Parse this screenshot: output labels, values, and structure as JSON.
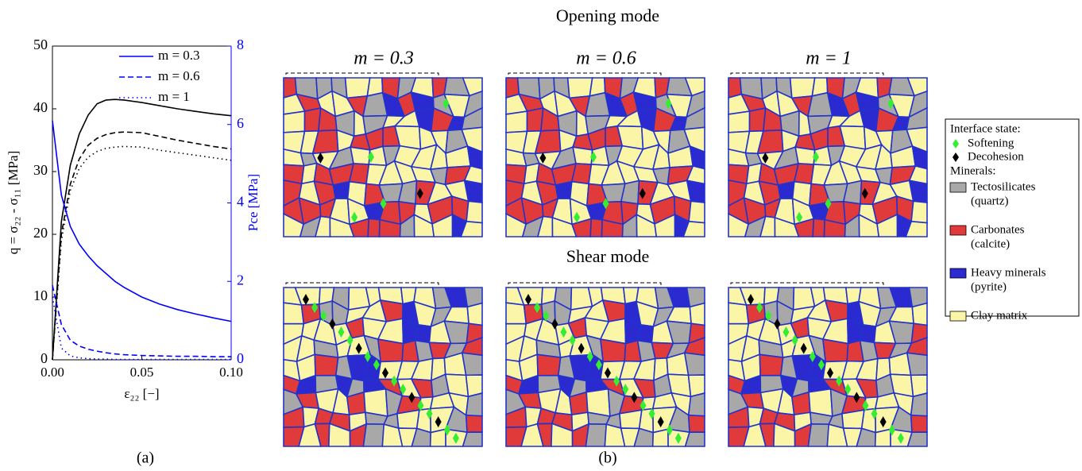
{
  "chart_data": {
    "type": "line",
    "xlabel": "ε₂₂ [−]",
    "ylabel": "q = σ₂₂ - σ₁₁ [MPa]",
    "y2label": "Pce [MPa]",
    "x": [
      0,
      0.005,
      0.01,
      0.015,
      0.02,
      0.025,
      0.03,
      0.035,
      0.04,
      0.05,
      0.06,
      0.07,
      0.08,
      0.09,
      0.1
    ],
    "xlim": [
      0,
      0.1
    ],
    "xticks": [
      {
        "value": 0,
        "label": "0.00"
      },
      {
        "value": 0.05,
        "label": "0.05"
      },
      {
        "value": 0.1,
        "label": "0.10"
      }
    ],
    "ylim": [
      0,
      50
    ],
    "yticks": [
      0,
      10,
      20,
      30,
      40,
      50
    ],
    "y2lim": [
      0,
      8
    ],
    "y2ticks": [
      0,
      2,
      4,
      6,
      8
    ],
    "y2color": "#0000ff",
    "legend": "upper right",
    "series": [
      {
        "color": "#000000",
        "dash": "solid",
        "values": [
          0,
          22,
          31,
          36,
          39,
          40.8,
          41.4,
          41.5,
          41.4,
          41,
          40.5,
          40,
          39.6,
          39.2,
          38.9
        ]
      },
      {
        "color": "#000000",
        "dash": "dashed",
        "values": [
          0,
          20,
          28,
          32,
          34.2,
          35.3,
          35.9,
          36.2,
          36.3,
          36.2,
          35.6,
          35,
          34.5,
          34,
          33.6
        ]
      },
      {
        "color": "#000000",
        "dash": "dotted",
        "values": [
          0,
          19,
          27,
          30.5,
          32.3,
          33.2,
          33.7,
          33.9,
          34,
          33.9,
          33.4,
          33,
          32.6,
          32.2,
          31.8
        ]
      },
      {
        "name": "m = 0.3",
        "color": "#0000ff",
        "dash": "solid",
        "axis": "y2",
        "values": [
          6.1,
          4.2,
          3.4,
          2.95,
          2.65,
          2.4,
          2.2,
          2.0,
          1.85,
          1.6,
          1.42,
          1.28,
          1.17,
          1.07,
          0.98
        ]
      },
      {
        "name": "m = 0.6",
        "color": "#0000ff",
        "dash": "dashed",
        "axis": "y2",
        "values": [
          1.9,
          0.9,
          0.5,
          0.35,
          0.27,
          0.22,
          0.18,
          0.15,
          0.13,
          0.11,
          0.1,
          0.09,
          0.09,
          0.08,
          0.08
        ]
      },
      {
        "name": "m = 1",
        "color": "#0000ff",
        "dash": "dotted",
        "axis": "y2",
        "values": [
          1.6,
          0.3,
          0.1,
          0.05,
          0.03,
          0.02,
          0.02,
          0.01,
          0.01,
          0.01,
          0.01,
          0.01,
          0.01,
          0.01,
          0.01
        ]
      }
    ]
  },
  "panel_b": {
    "sections": [
      "Opening mode",
      "Shear mode"
    ],
    "columns": [
      "m = 0.3",
      "m = 0.6",
      "m = 1"
    ],
    "legend": {
      "interface_title": "Interface state:",
      "interface_items": [
        {
          "label": "Softening",
          "color": "#33ee33"
        },
        {
          "label": "Decohesion",
          "color": "#000000"
        }
      ],
      "minerals_title": "Minerals:",
      "minerals": [
        {
          "label": [
            "Tectosilicates",
            "(quartz)"
          ],
          "color": "#a8a8a8"
        },
        {
          "label": [
            "Carbonates",
            "(calcite)"
          ],
          "color": "#e03a3a"
        },
        {
          "label": [
            "Heavy minerals",
            "(pyrite)"
          ],
          "color": "#2a2ad0"
        },
        {
          "label": [
            "Clay matrix"
          ],
          "color": "#fbf5a8"
        }
      ]
    }
  },
  "captions": [
    "(a)",
    "(b)"
  ]
}
